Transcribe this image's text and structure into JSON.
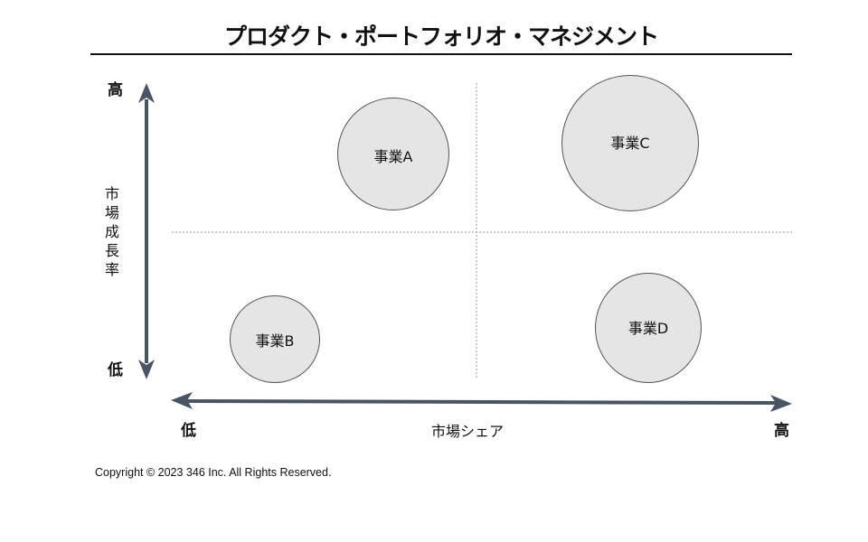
{
  "title": "プロダクト・ポートフォリオ・マネジメント",
  "y_axis": {
    "label": "市\n場\n成\n長\n率",
    "high": "高",
    "low": "低"
  },
  "x_axis": {
    "label": "市場シェア",
    "low": "低",
    "high": "高"
  },
  "bubbles": [
    {
      "label": "事業A",
      "quadrant": "high-growth / low-share"
    },
    {
      "label": "事業B",
      "quadrant": "low-growth / low-share"
    },
    {
      "label": "事業C",
      "quadrant": "high-growth / high-share"
    },
    {
      "label": "事業D",
      "quadrant": "low-growth / high-share"
    }
  ],
  "copyright": "Copyright © 2023 346 Inc. All Rights Reserved.",
  "colors": {
    "axis": "#4a5563",
    "bubble_fill": "#e5e5e5",
    "bubble_stroke": "#555555",
    "divider": "#999999"
  }
}
